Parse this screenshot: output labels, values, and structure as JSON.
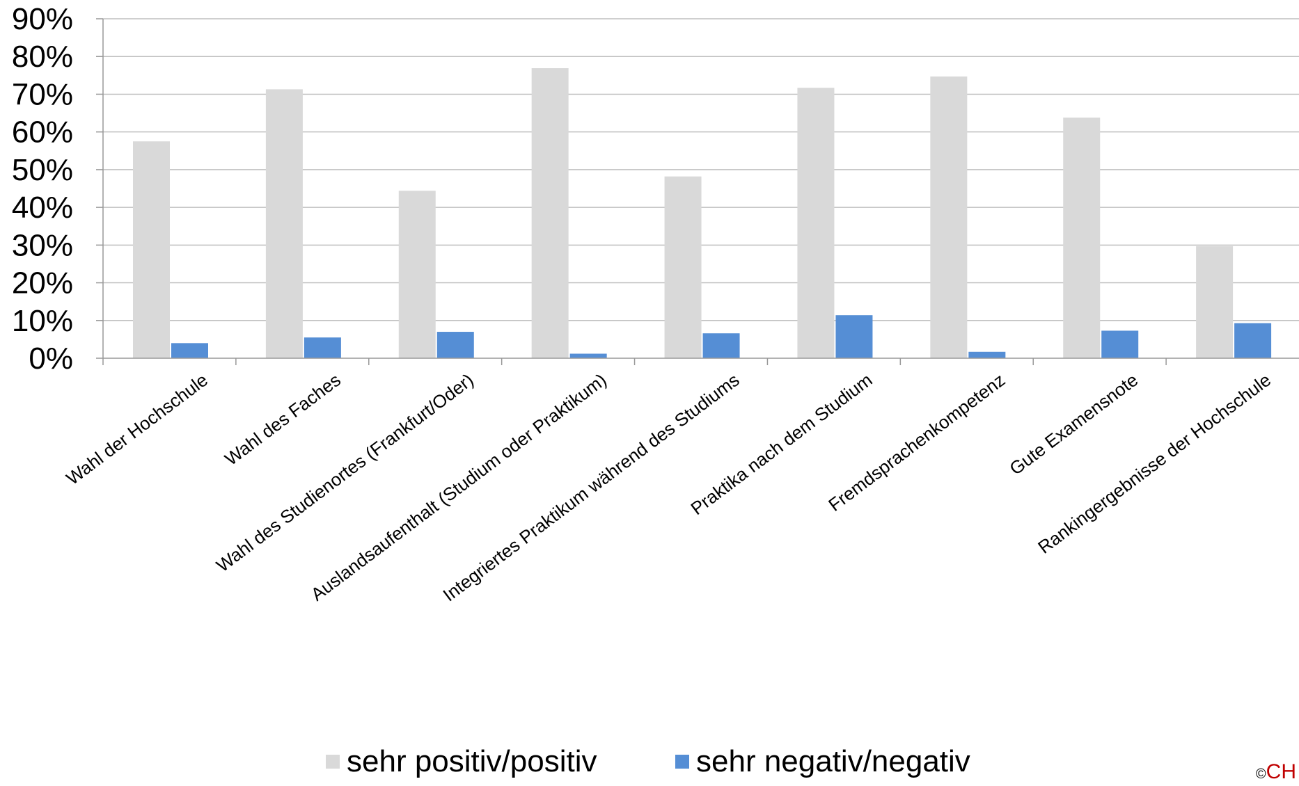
{
  "chart_data": {
    "type": "bar",
    "categories": [
      "Wahl der Hochschule",
      "Wahl des Faches",
      "Wahl des Studienortes (Frankfurt/Oder)",
      "Auslandsaufenthalt (Studium oder Praktikum)",
      "Integriertes Praktikum während des Studiums",
      "Praktika nach dem Studium",
      "Fremdsprachenkompetenz",
      "Gute Examensnote",
      "Rankingergebnisse der Hochschule"
    ],
    "series": [
      {
        "name": "sehr positiv/positiv",
        "color": "#d9d9d9",
        "values": [
          57.5,
          71.3,
          44.4,
          76.9,
          48.2,
          71.7,
          74.7,
          63.8,
          29.7
        ]
      },
      {
        "name": "sehr negativ/negativ",
        "color": "#558ed5",
        "values": [
          4.0,
          5.5,
          7.0,
          1.2,
          6.6,
          11.4,
          1.7,
          7.3,
          9.3
        ]
      }
    ],
    "yticks": [
      "0%",
      "10%",
      "20%",
      "30%",
      "40%",
      "50%",
      "60%",
      "70%",
      "80%",
      "90%"
    ],
    "ylim": [
      0,
      90
    ],
    "grid": true,
    "legend_position": "bottom",
    "title": "",
    "xlabel": "",
    "ylabel": ""
  },
  "corner_mark": {
    "prefix": "©",
    "brand": "CH"
  }
}
